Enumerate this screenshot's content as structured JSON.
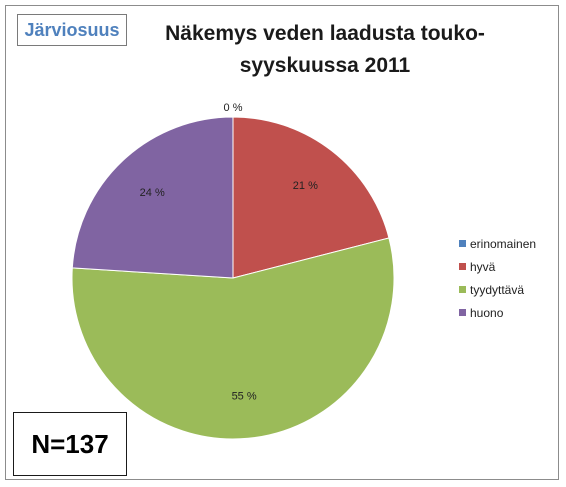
{
  "area_label": "Järviosuus",
  "sample_size": "N=137",
  "colors": {
    "erinomainen": "#4f81bd",
    "hyvä": "#c0504d",
    "tyydyttävä": "#9bbb59",
    "huono": "#8064a2"
  },
  "chart_data": {
    "type": "pie",
    "title": "Näkemys veden laadusta touko-syyskuussa 2011",
    "title_lines": [
      "Näkemys veden laadusta touko-",
      "syyskuussa 2011"
    ],
    "categories": [
      "erinomainen",
      "hyvä",
      "tyydyttävä",
      "huono"
    ],
    "values": [
      0,
      21,
      55,
      24
    ],
    "labels": [
      "0 %",
      "21 %",
      "55 %",
      "24 %"
    ],
    "legend_position": "right"
  }
}
